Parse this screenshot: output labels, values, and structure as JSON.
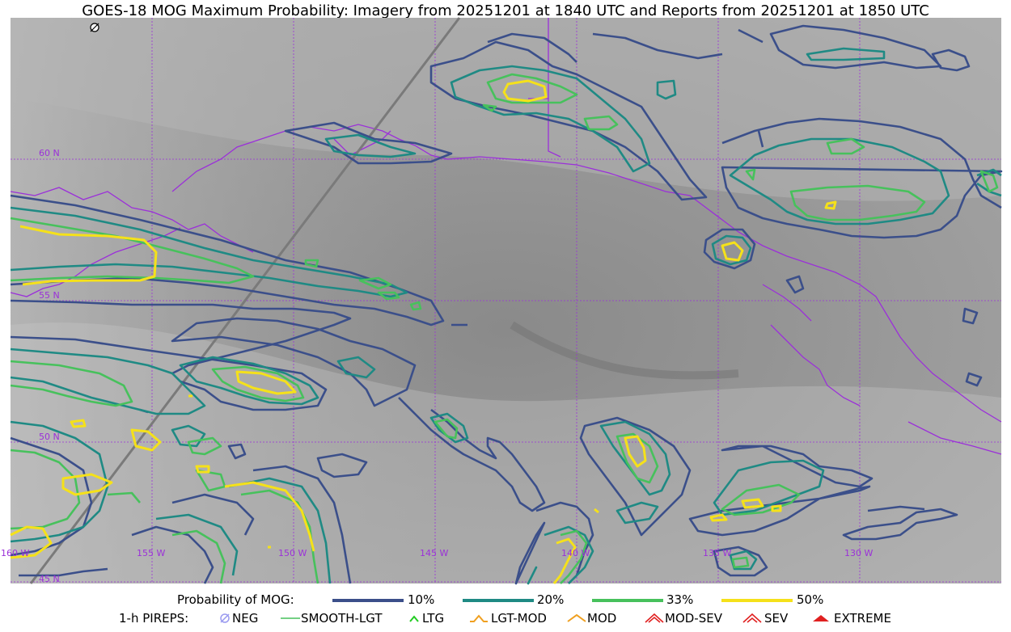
{
  "title": "GOES-18 MOG Maximum Probability: Imagery from 20251201 at 1840 UTC and Reports from 20251201 at 1850 UTC",
  "grid": {
    "lat_labels": [
      "60 N",
      "55 N",
      "50 N",
      "45 N"
    ],
    "lon_labels": [
      "160 W",
      "155 W",
      "150 W",
      "145 W",
      "140 W",
      "135 W",
      "130 W"
    ],
    "line_color": "#9b30d9"
  },
  "colors": {
    "p10": "#3b4f8a",
    "p20": "#1f8a84",
    "p33": "#47c15c",
    "p50": "#f5e11a",
    "coast": "#9b30d9",
    "orbit": "#7a7a7a"
  },
  "legend_probability": {
    "title": "Probability of MOG:",
    "items": [
      {
        "label": "10%",
        "color": "#3b4f8a"
      },
      {
        "label": "20%",
        "color": "#1f8a84"
      },
      {
        "label": "33%",
        "color": "#47c15c"
      },
      {
        "label": "50%",
        "color": "#f5e11a"
      }
    ]
  },
  "legend_pireps": {
    "title": "1-h PIREPS:",
    "items": [
      {
        "label": "NEG",
        "icon": "neg-circle-icon",
        "color": "#9b9bf0"
      },
      {
        "label": "SMOOTH-LGT",
        "icon": "smooth-line-icon",
        "color": "#47c15c"
      },
      {
        "label": "LTG",
        "icon": "ltg-caret-icon",
        "color": "#22cc22"
      },
      {
        "label": "LGT-MOD",
        "icon": "lgt-mod-hat-icon",
        "color": "#f0a020"
      },
      {
        "label": "MOD",
        "icon": "mod-caret-icon",
        "color": "#f0a020"
      },
      {
        "label": "MOD-SEV",
        "icon": "mod-sev-icon",
        "color": "#e02020"
      },
      {
        "label": "SEV",
        "icon": "sev-icon",
        "color": "#e02020"
      },
      {
        "label": "EXTREME",
        "icon": "extreme-icon",
        "color": "#e02020"
      }
    ]
  }
}
